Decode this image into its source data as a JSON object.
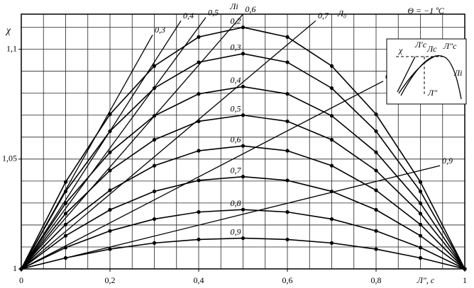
{
  "chart_data": {
    "type": "line",
    "annotation": "Θ = −1 ºC",
    "y_label": "χ",
    "x_label": "Л″, с",
    "ray_label_i": "Лi",
    "ray_label_0": "Л₀",
    "inset_labels": [
      "χ",
      "Л′c",
      "Лc",
      "Л″c",
      "Л″",
      "Лi"
    ],
    "xlim": [
      0,
      1
    ],
    "ylim": [
      1,
      1.116
    ],
    "xticks": [
      0,
      {
        "value": 0.2,
        "label": "0,2"
      },
      {
        "value": 0.4,
        "label": "0,4"
      },
      {
        "value": 0.6,
        "label": "0,6"
      },
      {
        "value": 0.8,
        "label": "0,8"
      },
      1
    ],
    "yticks": [
      1,
      {
        "value": 1.05,
        "label": "1,05"
      },
      {
        "value": 1.1,
        "label": "1,1"
      }
    ],
    "xgrid": [
      0.05,
      0.1,
      0.15,
      0.2,
      0.25,
      0.3,
      0.35,
      0.4,
      0.45,
      0.5,
      0.55,
      0.6,
      0.65,
      0.7,
      0.75,
      0.8,
      0.85,
      0.9,
      0.95
    ],
    "ygrid": [
      1.01,
      1.02,
      1.03,
      1.04,
      1.05,
      1.06,
      1.07,
      1.08,
      1.09,
      1.1,
      1.11
    ],
    "grid": true,
    "color": "#000000",
    "x": [
      0,
      0.1,
      0.2,
      0.3,
      0.4,
      0.5,
      0.6,
      0.7,
      0.8,
      0.9,
      1
    ],
    "series": [
      {
        "name": "0,2",
        "values": [
          1,
          1.0396,
          1.0704,
          1.0924,
          1.1056,
          1.11,
          1.1056,
          1.0924,
          1.0704,
          1.0396,
          1
        ]
      },
      {
        "name": "0,3",
        "values": [
          1,
          1.0353,
          1.0627,
          1.0823,
          1.0941,
          1.098,
          1.0941,
          1.0823,
          1.0627,
          1.0353,
          1
        ]
      },
      {
        "name": "0,4",
        "values": [
          1,
          1.0299,
          1.0531,
          1.0697,
          1.0797,
          1.083,
          1.0797,
          1.0697,
          1.0531,
          1.0299,
          1
        ]
      },
      {
        "name": "0,5",
        "values": [
          1,
          1.0252,
          1.0448,
          1.0588,
          1.0672,
          1.07,
          1.0672,
          1.0588,
          1.0448,
          1.0252,
          1
        ]
      },
      {
        "name": "0,6",
        "values": [
          1,
          1.0202,
          1.0358,
          1.047,
          1.0538,
          1.056,
          1.0538,
          1.047,
          1.0358,
          1.0202,
          1
        ]
      },
      {
        "name": "0,7",
        "values": [
          1,
          1.0151,
          1.0269,
          1.0353,
          1.0403,
          1.042,
          1.0403,
          1.0353,
          1.0269,
          1.0151,
          1
        ]
      },
      {
        "name": "0,8",
        "values": [
          1,
          1.0097,
          1.0173,
          1.0227,
          1.0259,
          1.027,
          1.0259,
          1.0227,
          1.0173,
          1.0097,
          1
        ]
      },
      {
        "name": "0,9",
        "values": [
          1,
          1.005,
          1.009,
          1.0118,
          1.0134,
          1.014,
          1.0134,
          1.0118,
          1.009,
          1.005,
          1
        ]
      }
    ],
    "rays": [
      {
        "name": "0,3",
        "x": [
          0,
          0.296
        ],
        "values": [
          1,
          1.1065
        ]
      },
      {
        "name": "0,4",
        "x": [
          0,
          0.36
        ],
        "values": [
          1,
          1.113
        ]
      },
      {
        "name": "0,5",
        "x": [
          0,
          0.416
        ],
        "values": [
          1,
          1.1145
        ]
      },
      {
        "name": "0,6",
        "x": [
          0,
          0.5
        ],
        "values": [
          1,
          1.116
        ]
      },
      {
        "name": "0,7",
        "x": [
          0,
          0.664
        ],
        "values": [
          1,
          1.113
        ]
      },
      {
        "name": "0,8",
        "x": [
          0,
          0.816
        ],
        "values": [
          1,
          1.0855
        ]
      },
      {
        "name": "0,9",
        "x": [
          0,
          0.944
        ],
        "values": [
          1,
          1.047
        ]
      }
    ]
  }
}
